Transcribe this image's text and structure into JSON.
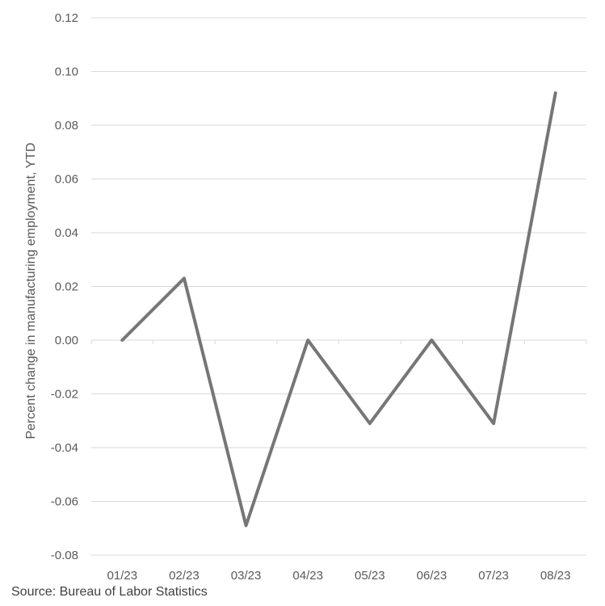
{
  "chart_data": {
    "type": "line",
    "title": "",
    "xlabel": "",
    "ylabel": "Percent change in manufacturing employment, YTD",
    "categories": [
      "01/23",
      "02/23",
      "03/23",
      "04/23",
      "05/23",
      "06/23",
      "07/23",
      "08/23"
    ],
    "series": [
      {
        "values": [
          0.0,
          0.023,
          -0.069,
          0.0,
          -0.031,
          0.0,
          -0.031,
          0.092
        ]
      }
    ],
    "ylim": [
      -0.08,
      0.12
    ],
    "yticks": [
      "0.12",
      "0.10",
      "0.08",
      "0.06",
      "0.04",
      "0.02",
      "0.00",
      "-0.02",
      "-0.04",
      "-0.06",
      "-0.08"
    ],
    "grid": true,
    "legend": "none"
  },
  "colors": {
    "line": "#767676",
    "grid": "#d9d9d9",
    "text": "#595959"
  },
  "source": "Source: Bureau of Labor Statistics"
}
